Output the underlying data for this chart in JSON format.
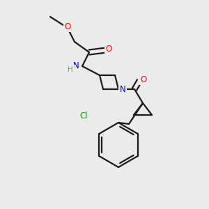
{
  "bg_color": "#ebebeb",
  "line_color": "#1a1a1a",
  "atom_colors": {
    "O": "#ff0000",
    "N": "#0000cd",
    "Cl": "#00aa00",
    "H": "#7a9a7a",
    "C": "#1a1a1a"
  },
  "bond_lw": 1.6,
  "font_size": 8.5
}
